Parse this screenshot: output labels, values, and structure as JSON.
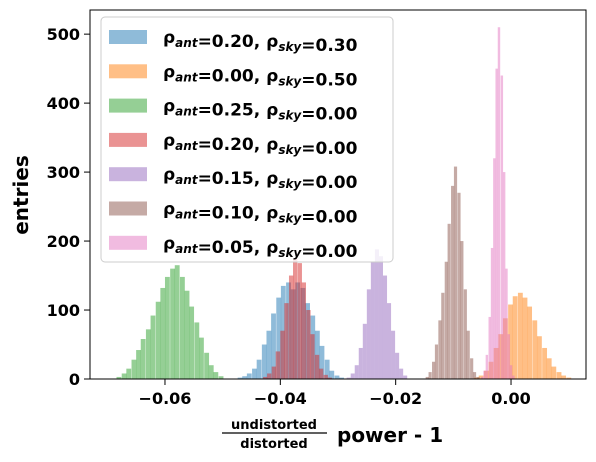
{
  "chart_data": {
    "type": "histogram",
    "title": "",
    "ylabel": "entries",
    "xlabel": {
      "fraction_numerator": "undistorted",
      "fraction_denominator": "distorted",
      "suffix": "power - 1"
    },
    "xlim": [
      -0.073,
      0.013
    ],
    "ylim": [
      0,
      535
    ],
    "xticks": [
      -0.06,
      -0.04,
      -0.02,
      0.0
    ],
    "xtick_labels": [
      "−0.06",
      "−0.04",
      "−0.02",
      "0.00"
    ],
    "yticks": [
      0,
      100,
      200,
      300,
      400,
      500
    ],
    "ytick_labels": [
      "0",
      "100",
      "200",
      "300",
      "400",
      "500"
    ],
    "grid": false,
    "legend_position": "upper-left",
    "alpha": 0.5,
    "series": [
      {
        "name": "ρant=0.20, ρsky=0.30",
        "rho_ant": "0.20",
        "rho_sky": "0.30",
        "color": "#1f77b4",
        "bin_width": 0.00084,
        "bins": [
          [
            -0.0474,
            2
          ],
          [
            -0.0466,
            4
          ],
          [
            -0.0458,
            8
          ],
          [
            -0.0449,
            15
          ],
          [
            -0.0441,
            28
          ],
          [
            -0.0432,
            50
          ],
          [
            -0.0424,
            70
          ],
          [
            -0.0416,
            95
          ],
          [
            -0.0407,
            118
          ],
          [
            -0.0399,
            135
          ],
          [
            -0.039,
            140
          ],
          [
            -0.0382,
            130
          ],
          [
            -0.0374,
            140
          ],
          [
            -0.0365,
            132
          ],
          [
            -0.0357,
            110
          ],
          [
            -0.0348,
            92
          ],
          [
            -0.034,
            70
          ],
          [
            -0.0332,
            48
          ],
          [
            -0.0323,
            28
          ],
          [
            -0.0315,
            12
          ],
          [
            -0.0306,
            5
          ],
          [
            -0.0298,
            2
          ]
        ]
      },
      {
        "name": "ρant=0.00, ρsky=0.50",
        "rho_ant": "0.00",
        "rho_sky": "0.50",
        "color": "#ff7f0e",
        "bin_width": 0.00084,
        "bins": [
          [
            -0.0064,
            2
          ],
          [
            -0.0056,
            5
          ],
          [
            -0.0047,
            12
          ],
          [
            -0.0039,
            25
          ],
          [
            -0.003,
            45
          ],
          [
            -0.0022,
            65
          ],
          [
            -0.0014,
            88
          ],
          [
            -0.0005,
            108
          ],
          [
            0.0003,
            120
          ],
          [
            0.0012,
            125
          ],
          [
            0.002,
            118
          ],
          [
            0.0028,
            105
          ],
          [
            0.0037,
            85
          ],
          [
            0.0045,
            62
          ],
          [
            0.0054,
            45
          ],
          [
            0.0062,
            30
          ],
          [
            0.007,
            18
          ],
          [
            0.0079,
            10
          ],
          [
            0.0087,
            5
          ],
          [
            0.0096,
            2
          ]
        ]
      },
      {
        "name": "ρant=0.25, ρsky=0.00",
        "rho_ant": "0.25",
        "rho_sky": "0.00",
        "color": "#2ca02c",
        "bin_width": 0.00084,
        "bins": [
          [
            -0.0684,
            3
          ],
          [
            -0.0675,
            8
          ],
          [
            -0.0667,
            15
          ],
          [
            -0.0658,
            28
          ],
          [
            -0.065,
            42
          ],
          [
            -0.0642,
            58
          ],
          [
            -0.0633,
            72
          ],
          [
            -0.0625,
            92
          ],
          [
            -0.0616,
            112
          ],
          [
            -0.0608,
            132
          ],
          [
            -0.06,
            148
          ],
          [
            -0.0591,
            160
          ],
          [
            -0.0583,
            165
          ],
          [
            -0.0574,
            148
          ],
          [
            -0.0566,
            128
          ],
          [
            -0.0558,
            105
          ],
          [
            -0.0549,
            82
          ],
          [
            -0.0541,
            60
          ],
          [
            -0.0532,
            38
          ],
          [
            -0.0524,
            20
          ],
          [
            -0.0516,
            10
          ],
          [
            -0.0507,
            4
          ]
        ]
      },
      {
        "name": "ρant=0.20, ρsky=0.00",
        "rho_ant": "0.20",
        "rho_sky": "0.00",
        "color": "#d62728",
        "bin_width": 0.00075,
        "bins": [
          [
            -0.043,
            3
          ],
          [
            -0.0423,
            8
          ],
          [
            -0.0415,
            18
          ],
          [
            -0.0408,
            40
          ],
          [
            -0.04,
            70
          ],
          [
            -0.0393,
            110
          ],
          [
            -0.0385,
            150
          ],
          [
            -0.0378,
            175
          ],
          [
            -0.037,
            168
          ],
          [
            -0.0363,
            140
          ],
          [
            -0.0355,
            100
          ],
          [
            -0.0348,
            65
          ],
          [
            -0.034,
            35
          ],
          [
            -0.0333,
            15
          ],
          [
            -0.0325,
            6
          ],
          [
            -0.0318,
            2
          ]
        ]
      },
      {
        "name": "ρant=0.15, ρsky=0.00",
        "rho_ant": "0.15",
        "rho_sky": "0.00",
        "color": "#9467bd",
        "bin_width": 0.0007,
        "bins": [
          [
            -0.0285,
            2
          ],
          [
            -0.0278,
            8
          ],
          [
            -0.0271,
            20
          ],
          [
            -0.0264,
            45
          ],
          [
            -0.0257,
            80
          ],
          [
            -0.025,
            130
          ],
          [
            -0.0243,
            170
          ],
          [
            -0.0236,
            188
          ],
          [
            -0.0229,
            178
          ],
          [
            -0.0222,
            150
          ],
          [
            -0.0215,
            110
          ],
          [
            -0.0208,
            70
          ],
          [
            -0.0201,
            38
          ],
          [
            -0.0194,
            15
          ],
          [
            -0.0187,
            5
          ]
        ]
      },
      {
        "name": "ρant=0.10, ρsky=0.00",
        "rho_ant": "0.10",
        "rho_sky": "0.00",
        "color": "#8c564b",
        "bin_width": 0.00055,
        "bins": [
          [
            -0.0148,
            3
          ],
          [
            -0.0143,
            10
          ],
          [
            -0.0137,
            25
          ],
          [
            -0.0132,
            50
          ],
          [
            -0.0126,
            85
          ],
          [
            -0.0121,
            125
          ],
          [
            -0.0115,
            170
          ],
          [
            -0.011,
            225
          ],
          [
            -0.0104,
            280
          ],
          [
            -0.0099,
            308
          ],
          [
            -0.0093,
            270
          ],
          [
            -0.0088,
            200
          ],
          [
            -0.0082,
            130
          ],
          [
            -0.0077,
            70
          ],
          [
            -0.0071,
            30
          ],
          [
            -0.0066,
            10
          ],
          [
            -0.006,
            3
          ]
        ]
      },
      {
        "name": "ρant=0.05, ρsky=0.00",
        "rho_ant": "0.05",
        "rho_sky": "0.00",
        "color": "#e377c2",
        "bin_width": 0.00042,
        "bins": [
          [
            -0.0052,
            3
          ],
          [
            -0.0048,
            12
          ],
          [
            -0.0044,
            35
          ],
          [
            -0.0039,
            90
          ],
          [
            -0.0035,
            190
          ],
          [
            -0.0031,
            320
          ],
          [
            -0.0027,
            450
          ],
          [
            -0.0023,
            510
          ],
          [
            -0.0018,
            440
          ],
          [
            -0.0014,
            300
          ],
          [
            -0.001,
            160
          ],
          [
            -0.0006,
            65
          ],
          [
            -0.0002,
            20
          ],
          [
            0.0002,
            5
          ]
        ]
      }
    ]
  }
}
